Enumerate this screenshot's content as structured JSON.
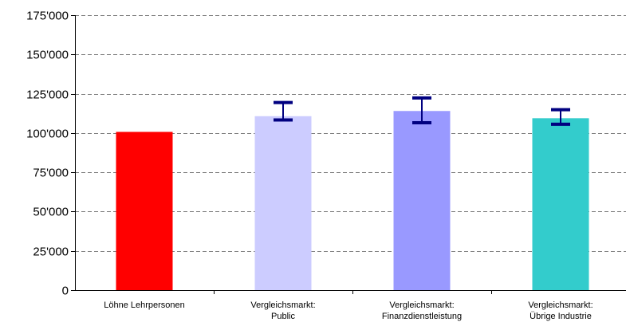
{
  "chart_data": {
    "type": "bar",
    "categories": [
      [
        "Löhne Lehrpersonen"
      ],
      [
        "Vergleichsmarkt:",
        "Public"
      ],
      [
        "Vergleichsmarkt:",
        "Finanzdienstleistung"
      ],
      [
        "Vergleichsmarkt:",
        "Übrige Industrie"
      ]
    ],
    "values": [
      100700,
      110700,
      114000,
      109400
    ],
    "error_bars": [
      null,
      {
        "low": 108300,
        "high": 119400
      },
      {
        "low": 106500,
        "high": 122300
      },
      {
        "low": 105600,
        "high": 114800
      }
    ],
    "colors": [
      "#ff0000",
      "#ccccff",
      "#9999ff",
      "#33cccc"
    ],
    "error_bar_color": "#000080",
    "ylim": [
      0,
      175000
    ],
    "yticks": [
      0,
      25000,
      50000,
      75000,
      100000,
      125000,
      150000,
      175000
    ],
    "ytick_labels": [
      "0",
      "25'000",
      "50'000",
      "75'000",
      "100'000",
      "125'000",
      "150'000",
      "175'000"
    ],
    "grid": "horizontal dashed",
    "title": "",
    "xlabel": "",
    "ylabel": ""
  }
}
